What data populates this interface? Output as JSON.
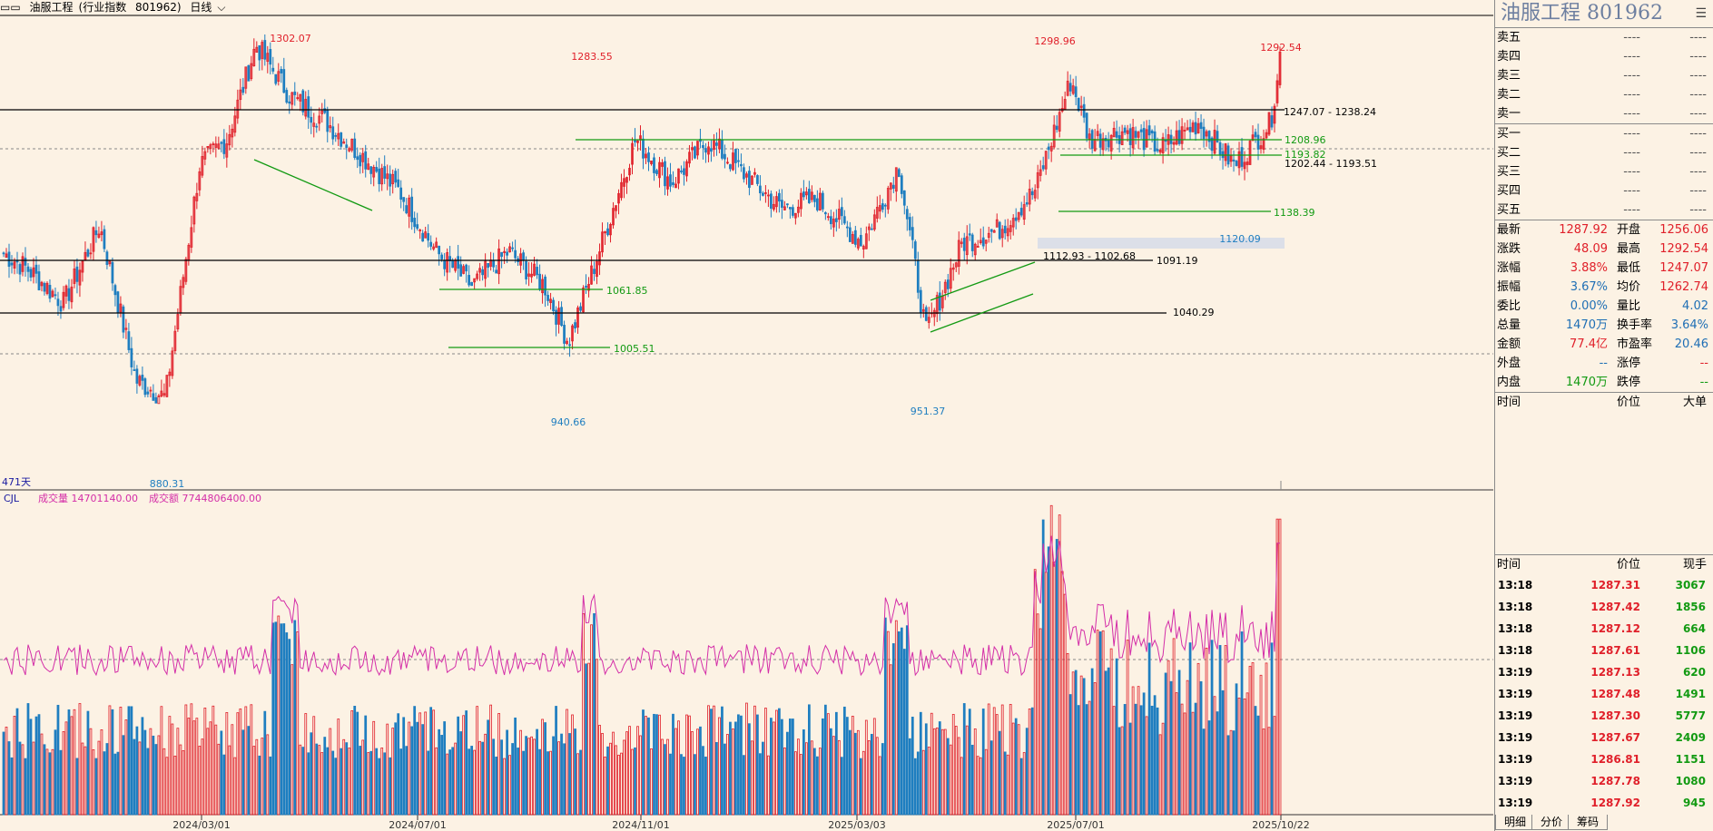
{
  "title_bar": {
    "name": "油服工程",
    "index_type": "(行业指数",
    "code": "801962)",
    "period": "日线"
  },
  "chart_labels": {
    "days": "471天",
    "volume_prefix": "CJL",
    "volume_label": "成交量 14701140.00",
    "amount_label": "成交额 7744806400.00"
  },
  "chart_data": {
    "type": "candlestick",
    "x_ticks": [
      "2024/03/01",
      "2024/07/01",
      "2024/11/01",
      "2025/03/03",
      "2025/07/01",
      "2025/10/22"
    ],
    "y_range": [
      880.31,
      1302.07
    ],
    "extreme_labels": [
      "1302.07",
      "880.31",
      "1283.55",
      "940.66",
      "951.37",
      "1298.96",
      "1292.54",
      "1120.09"
    ],
    "level_labels": [
      "1247.07 - 1238.24",
      "1208.96",
      "1193.82",
      "1202.44 - 1193.51",
      "1138.39",
      "1112.93 - 1102.68",
      "1091.19",
      "1061.85",
      "1040.29",
      "1005.51"
    ],
    "key_points": [
      {
        "x": "2024/01",
        "y": 1010
      },
      {
        "x": "2024/02",
        "y": 880.31
      },
      {
        "x": "2024/04",
        "y": 1302.07
      },
      {
        "x": "2024/08",
        "y": 1005.51
      },
      {
        "x": "2024/09",
        "y": 940.66
      },
      {
        "x": "2024/10",
        "y": 1283.55
      },
      {
        "x": "2025/04",
        "y": 951.37
      },
      {
        "x": "2025/06",
        "y": 1298.96
      },
      {
        "x": "2025/09",
        "y": 1120.09
      },
      {
        "x": "2025/10/22",
        "y": 1287.92
      }
    ],
    "volume_series": "成交量",
    "volume_last": 14701140.0,
    "amount_last": 7744806400.0
  },
  "right_panel": {
    "stock_name": "油服工程",
    "stock_code": "801962",
    "menu_icon": "list-icon",
    "order_book": [
      {
        "label": "卖五",
        "price": "----",
        "vol": "----"
      },
      {
        "label": "卖四",
        "price": "----",
        "vol": "----"
      },
      {
        "label": "卖三",
        "price": "----",
        "vol": "----"
      },
      {
        "label": "卖二",
        "price": "----",
        "vol": "----"
      },
      {
        "label": "卖一",
        "price": "----",
        "vol": "----"
      },
      {
        "label": "买一",
        "price": "----",
        "vol": "----"
      },
      {
        "label": "买二",
        "price": "----",
        "vol": "----"
      },
      {
        "label": "买三",
        "price": "----",
        "vol": "----"
      },
      {
        "label": "买四",
        "price": "----",
        "vol": "----"
      },
      {
        "label": "买五",
        "price": "----",
        "vol": "----"
      }
    ],
    "quote": [
      {
        "l1": "最新",
        "v1": "1287.92",
        "c1": "red",
        "l2": "开盘",
        "v2": "1256.06",
        "c2": "red"
      },
      {
        "l1": "涨跌",
        "v1": "48.09",
        "c1": "red",
        "l2": "最高",
        "v2": "1292.54",
        "c2": "red"
      },
      {
        "l1": "涨幅",
        "v1": "3.88%",
        "c1": "red",
        "l2": "最低",
        "v2": "1247.07",
        "c2": "red"
      },
      {
        "l1": "振幅",
        "v1": "3.67%",
        "c1": "blue",
        "l2": "均价",
        "v2": "1262.74",
        "c2": "red"
      },
      {
        "l1": "委比",
        "v1": "0.00%",
        "c1": "blue",
        "l2": "量比",
        "v2": "4.02",
        "c2": "blue"
      },
      {
        "l1": "总量",
        "v1": "1470万",
        "c1": "blue",
        "l2": "换手率",
        "v2": "3.64%",
        "c2": "blue"
      },
      {
        "l1": "金额",
        "v1": "77.4亿",
        "c1": "red",
        "l2": "市盈率",
        "v2": "20.46",
        "c2": "blue"
      },
      {
        "l1": "外盘",
        "v1": "--",
        "c1": "blue",
        "l2": "涨停",
        "v2": "--",
        "c2": "red"
      },
      {
        "l1": "内盘",
        "v1": "1470万",
        "c1": "green",
        "l2": "跌停",
        "v2": "--",
        "c2": "green"
      }
    ],
    "big_orders_header": {
      "time": "时间",
      "price": "价位",
      "big": "大单"
    },
    "ticks_header": {
      "time": "时间",
      "price": "价位",
      "vol": "现手"
    },
    "ticks": [
      {
        "time": "13:18",
        "price": "1287.31",
        "vol": "3067"
      },
      {
        "time": "13:18",
        "price": "1287.42",
        "vol": "1856"
      },
      {
        "time": "13:18",
        "price": "1287.12",
        "vol": "664"
      },
      {
        "time": "13:18",
        "price": "1287.61",
        "vol": "1106"
      },
      {
        "time": "13:19",
        "price": "1287.13",
        "vol": "620"
      },
      {
        "time": "13:19",
        "price": "1287.48",
        "vol": "1491"
      },
      {
        "time": "13:19",
        "price": "1287.30",
        "vol": "5777"
      },
      {
        "time": "13:19",
        "price": "1287.67",
        "vol": "2409"
      },
      {
        "time": "13:19",
        "price": "1286.81",
        "vol": "1151"
      },
      {
        "time": "13:19",
        "price": "1287.78",
        "vol": "1080"
      },
      {
        "time": "13:19",
        "price": "1287.92",
        "vol": "945"
      }
    ],
    "tabs": [
      "明细",
      "分价",
      "筹码"
    ]
  },
  "colors": {
    "up": "#e0202a",
    "down": "#1f7ec0",
    "drawline": "#129a12",
    "background": "#fcf2e4"
  }
}
